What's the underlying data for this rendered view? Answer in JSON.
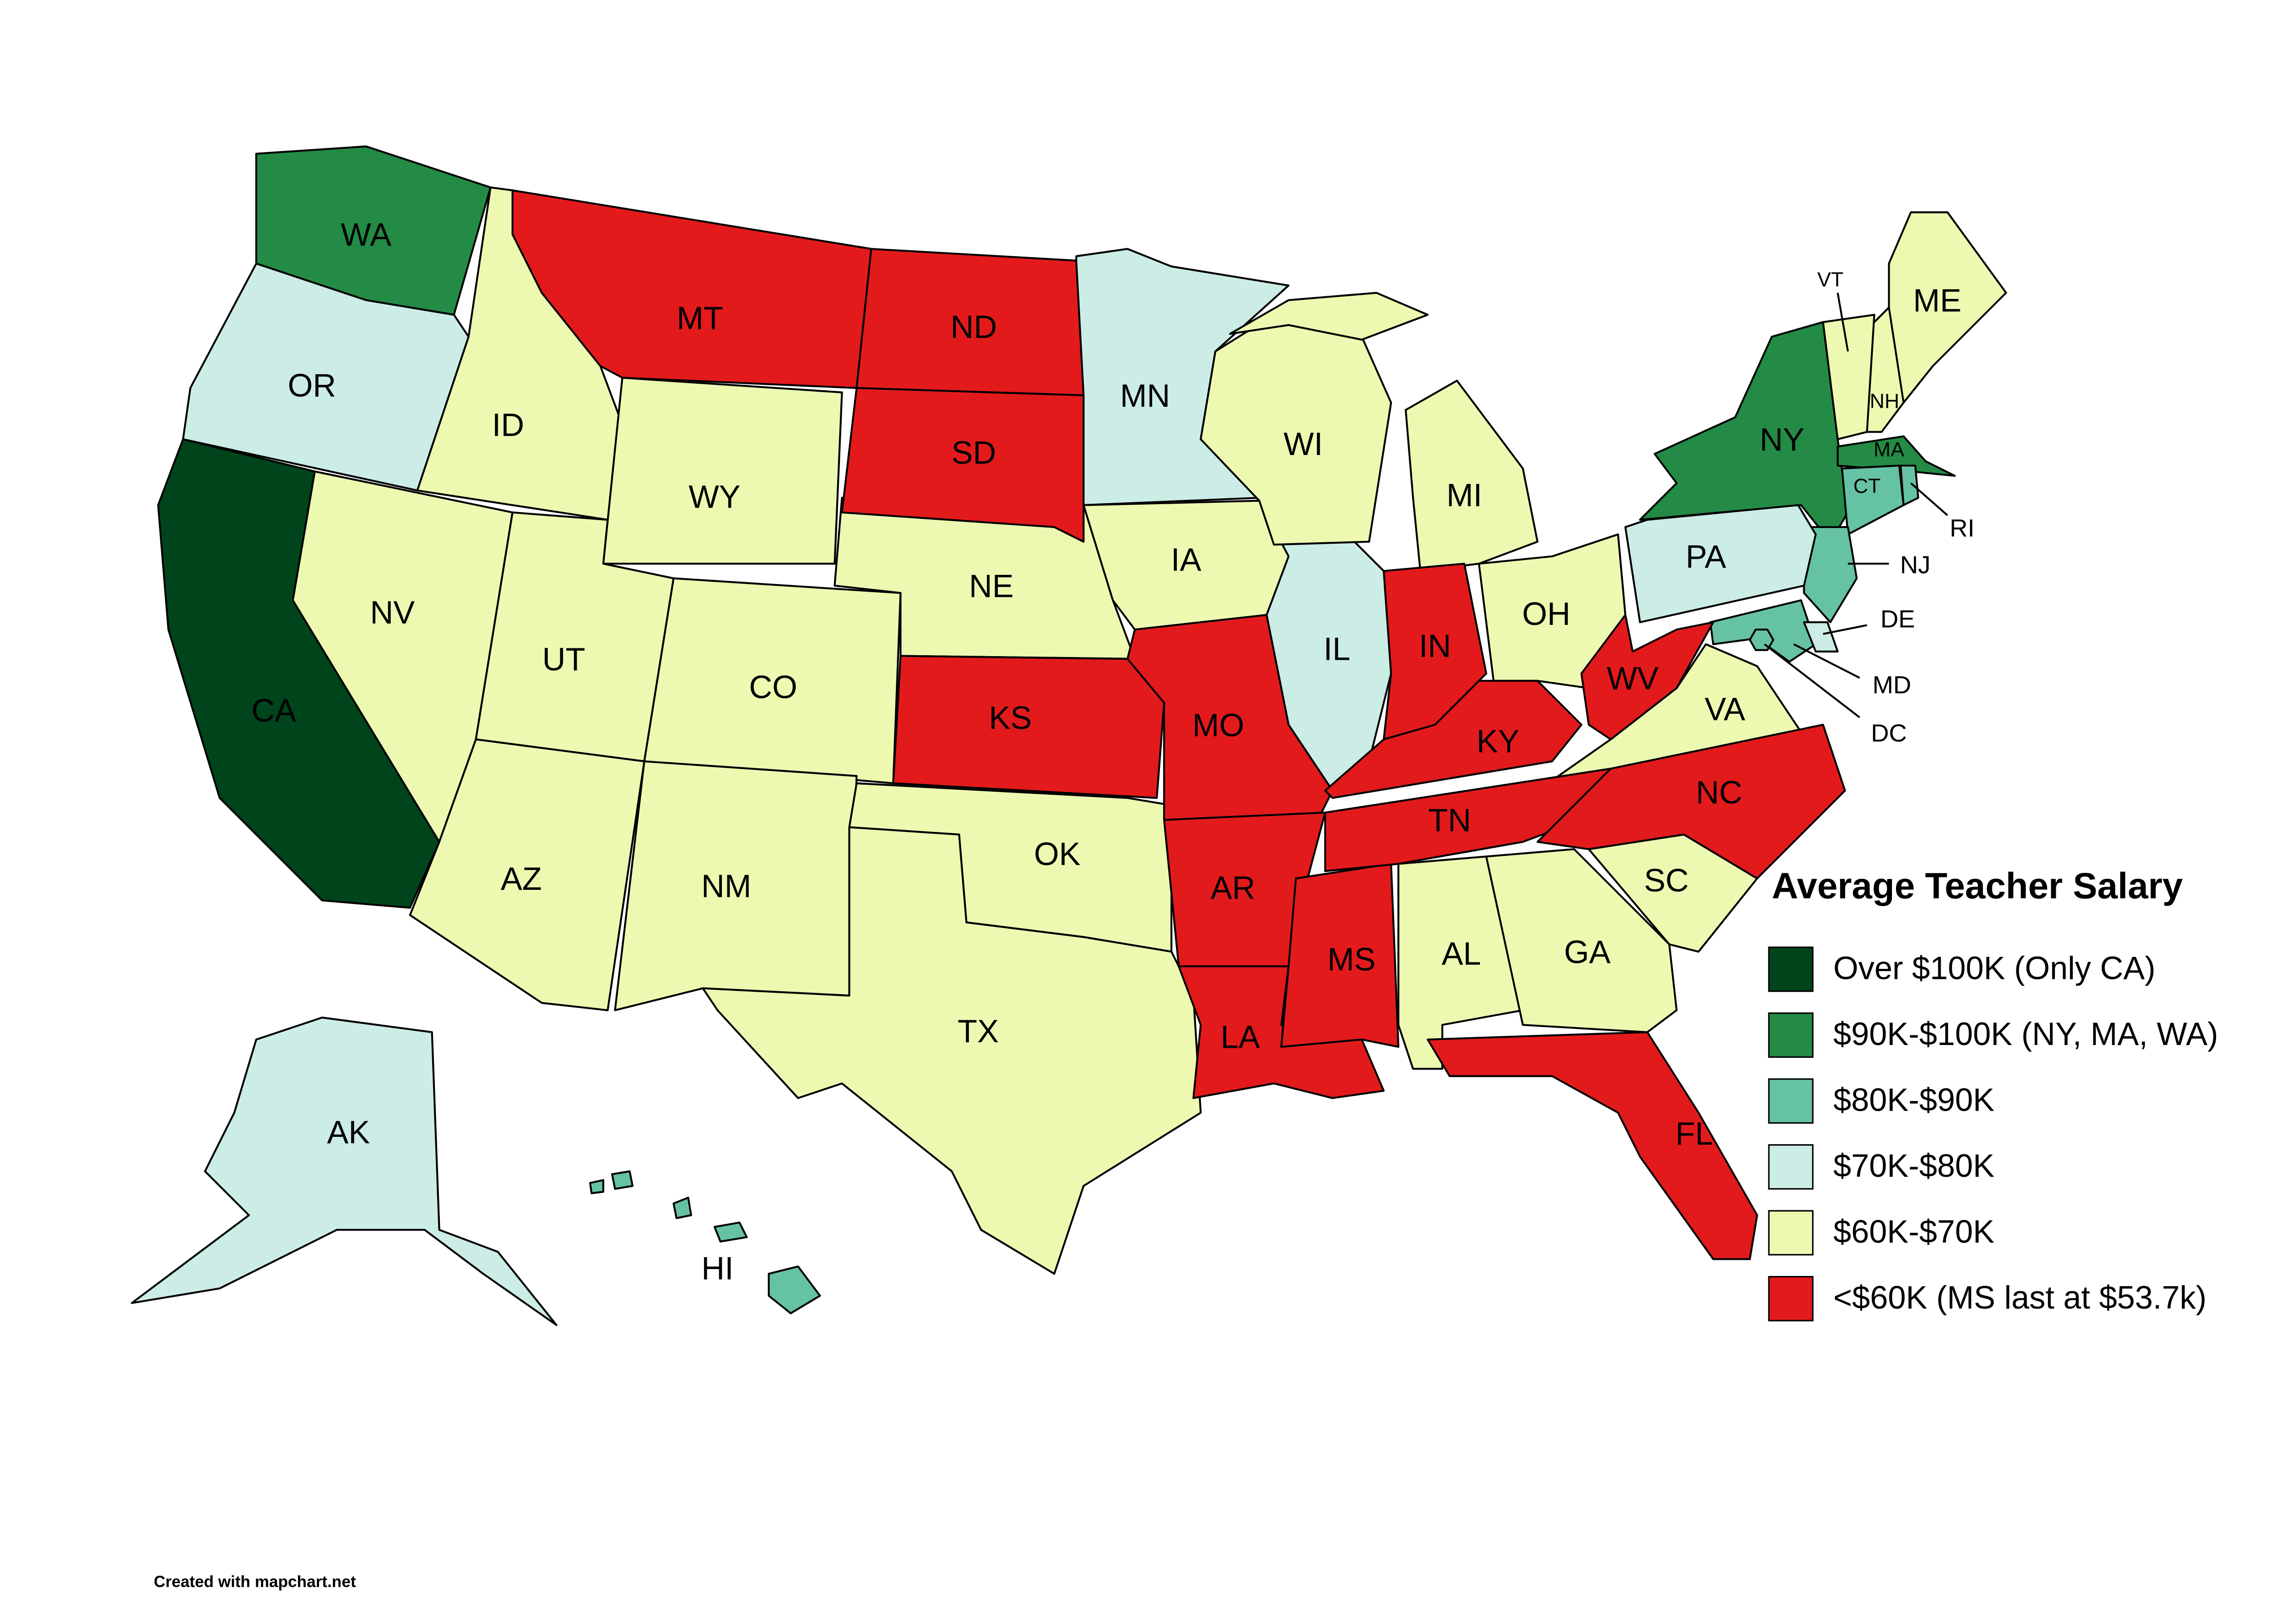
{
  "title": "Average Teacher Salary",
  "credit": "Created with mapchart.net",
  "legend": [
    {
      "label": "Over $100K (Only CA)",
      "color": "#00441b",
      "states": [
        "CA"
      ]
    },
    {
      "label": "$90K-$100K (NY, MA, WA)",
      "color": "#238b45",
      "states": [
        "NY",
        "MA",
        "WA"
      ]
    },
    {
      "label": "$80K-$90K",
      "color": "#66c2a4",
      "states": [
        "CT",
        "NJ",
        "MD",
        "RI",
        "DC",
        "HI"
      ]
    },
    {
      "label": "$70K-$80K",
      "color": "#ccece6",
      "states": [
        "OR",
        "MN",
        "IL",
        "PA",
        "AK",
        "DE"
      ]
    },
    {
      "label": "$60K-$70K",
      "color": "#edf8b1",
      "states": [
        "ID",
        "WY",
        "NV",
        "UT",
        "CO",
        "AZ",
        "NM",
        "NE",
        "IA",
        "WI",
        "MI",
        "OH",
        "OK",
        "TX",
        "AL",
        "GA",
        "SC",
        "VA",
        "ME",
        "NH",
        "VT"
      ]
    },
    {
      "label": "<$60K (MS last at $53.7k)",
      "color": "#e31a1c",
      "states": [
        "MT",
        "ND",
        "SD",
        "KS",
        "MO",
        "AR",
        "LA",
        "MS",
        "TN",
        "KY",
        "IN",
        "WV",
        "NC",
        "FL"
      ]
    }
  ]
}
